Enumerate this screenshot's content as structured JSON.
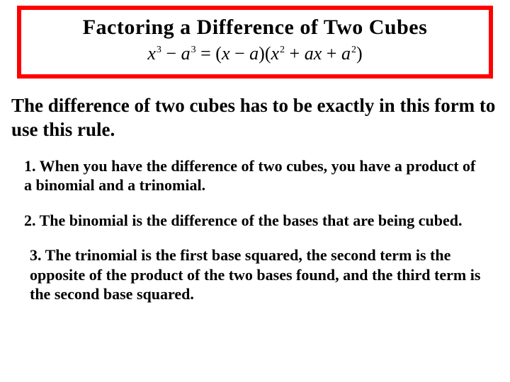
{
  "title_box": {
    "border_color": "#ff0000",
    "border_width": 6,
    "title": "Factoring a Difference of Two Cubes",
    "title_fontsize": 30,
    "formula": {
      "lhs_var1": "x",
      "lhs_exp1": "3",
      "lhs_op": "−",
      "lhs_var2": "a",
      "lhs_exp2": "3",
      "eq": "=",
      "bin_open": "(",
      "bin_v1": "x",
      "bin_op": "−",
      "bin_v2": "a",
      "bin_close": ")",
      "tri_open": "(",
      "tri_t1v": "x",
      "tri_t1e": "2",
      "tri_op1": "+",
      "tri_t2a": "a",
      "tri_t2b": "x",
      "tri_op2": "+",
      "tri_t3v": "a",
      "tri_t3e": "2",
      "tri_close": ")",
      "fontsize": 26
    }
  },
  "intro_text": "The difference of two cubes has to be exactly in this form to use this rule.",
  "intro_fontsize": 27,
  "rules": [
    "1.  When you have the difference of two cubes, you have a product of a binomial and a trinomial.",
    "2.  The binomial is the difference of the bases that are being cubed.",
    "3.  The trinomial is the first base squared, the second term is the opposite of the product of the two bases found, and the third term is the second base squared."
  ],
  "rule_fontsize": 22,
  "colors": {
    "background": "#ffffff",
    "text": "#000000",
    "box_border": "#ff0000"
  }
}
